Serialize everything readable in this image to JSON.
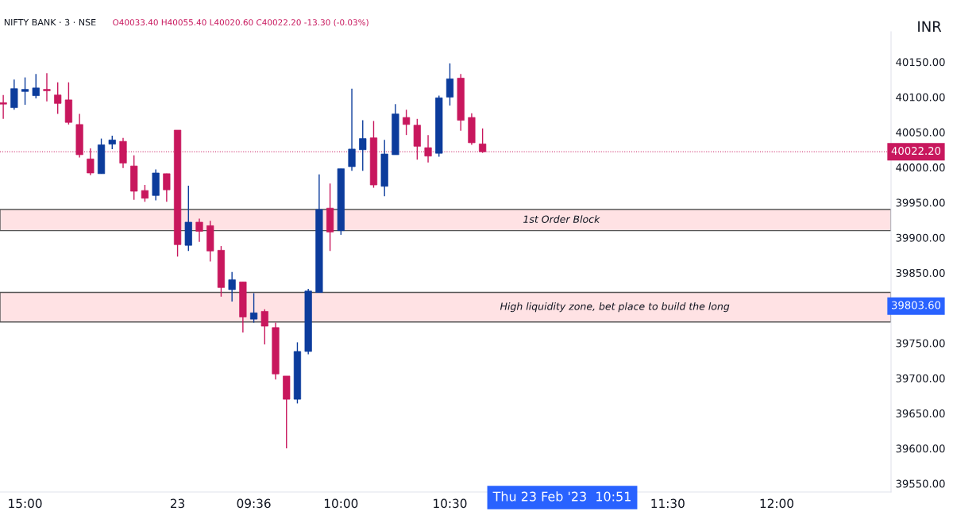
{
  "chart_data": {
    "type": "candlestick",
    "title": "NIFTY BANK · 3 · NSE",
    "subtitle": "O40033.40 H40055.40 L40020.60 C40022.20 -13.30 (-0.03%)",
    "categories": [
      null,
      null,
      "15:00",
      null,
      null,
      null,
      null,
      null,
      null,
      null,
      null,
      null,
      null,
      null,
      null,
      null,
      "23",
      null,
      null,
      null,
      null,
      null,
      null,
      "09:36",
      null,
      null,
      null,
      null,
      null,
      null,
      null,
      "10:00",
      null,
      null,
      null,
      null,
      null,
      null,
      null,
      null,
      null,
      "10:30",
      null,
      null,
      null,
      null,
      null,
      null,
      null,
      null,
      null,
      null,
      null,
      null,
      null,
      null,
      null,
      null,
      null,
      null,
      null,
      "11:30",
      null,
      null,
      null,
      null,
      null,
      null,
      null,
      null,
      null,
      "12:00",
      null,
      null,
      null,
      null,
      null,
      null,
      null,
      null,
      null,
      null
    ],
    "ohlc": [
      [
        40092,
        40103,
        40069,
        40090
      ],
      [
        40085,
        40125,
        40082,
        40112
      ],
      [
        40108,
        40128,
        40089,
        40111
      ],
      [
        40102,
        40133,
        40098,
        40113
      ],
      [
        40111,
        40134,
        40094,
        40109
      ],
      [
        40103,
        40121,
        40076,
        40091
      ],
      [
        40096,
        40121,
        40061,
        40064
      ],
      [
        40061,
        40076,
        40014,
        40018
      ],
      [
        40012,
        40027,
        39989,
        39992
      ],
      [
        39991,
        40041,
        39991,
        40032
      ],
      [
        40033,
        40045,
        40026,
        40039
      ],
      [
        40037,
        40042,
        39999,
        40006
      ],
      [
        40002,
        40017,
        39954,
        39966
      ],
      [
        39967,
        39975,
        39951,
        39956
      ],
      [
        39960,
        39997,
        39953,
        39992
      ],
      [
        39991,
        39991,
        39951,
        39968
      ],
      [
        40053,
        40053,
        39873,
        39890
      ],
      [
        39889,
        39974,
        39881,
        39922
      ],
      [
        39922,
        39927,
        39894,
        39909
      ],
      [
        39917,
        39924,
        39866,
        39881
      ],
      [
        39882,
        39888,
        39816,
        39829
      ],
      [
        39826,
        39851,
        39809,
        39840
      ],
      [
        39837,
        39837,
        39765,
        39787
      ],
      [
        39784,
        39821,
        39779,
        39793
      ],
      [
        39795,
        39798,
        39748,
        39774
      ],
      [
        39772,
        39779,
        39698,
        39706
      ],
      [
        39703,
        39703,
        39600,
        39670
      ],
      [
        39670,
        39751,
        39664,
        39738
      ],
      [
        39738,
        39827,
        39734,
        39824
      ],
      [
        39822,
        39990,
        39822,
        39940
      ],
      [
        39942,
        39977,
        39881,
        39908
      ],
      [
        39910,
        39998,
        39904,
        39998
      ],
      [
        40001,
        40112,
        39995,
        40026
      ],
      [
        40025,
        40067,
        39995,
        40041
      ],
      [
        40042,
        40066,
        39971,
        39975
      ],
      [
        39973,
        40039,
        39959,
        40019
      ],
      [
        40018,
        40090,
        40018,
        40076
      ],
      [
        40071,
        40082,
        40046,
        40061
      ],
      [
        40060,
        40069,
        40011,
        40030
      ],
      [
        40028,
        40046,
        40007,
        40016
      ],
      [
        40020,
        40102,
        40015,
        40099
      ],
      [
        40100,
        40148,
        40088,
        40126
      ],
      [
        40127,
        40133,
        40052,
        40067
      ],
      [
        40071,
        40077,
        40032,
        40035
      ],
      [
        40033.4,
        40055.4,
        40020.6,
        40022.2
      ],
      null,
      null,
      null,
      null,
      null,
      null,
      null,
      null,
      null,
      null,
      null,
      null,
      null,
      null,
      null,
      null,
      null,
      null,
      null,
      null,
      null,
      null,
      null,
      null,
      null,
      null,
      null,
      null,
      null,
      null,
      null,
      null,
      null,
      null,
      null,
      null,
      null
    ],
    "colors": [
      "#c8175d",
      "#0c3c9c",
      "#0c3c9c",
      "#0c3c9c",
      "#c8175d",
      "#c8175d",
      "#c8175d",
      "#c8175d",
      "#c8175d",
      "#0c3c9c",
      "#0c3c9c",
      "#c8175d",
      "#c8175d",
      "#c8175d",
      "#0c3c9c",
      "#c8175d",
      "#c8175d",
      "#0c3c9c",
      "#c8175d",
      "#c8175d",
      "#c8175d",
      "#0c3c9c",
      "#c8175d",
      "#0c3c9c",
      "#c8175d",
      "#c8175d",
      "#c8175d",
      "#0c3c9c",
      "#0c3c9c",
      "#0c3c9c",
      "#c8175d",
      "#0c3c9c",
      "#0c3c9c",
      "#0c3c9c",
      "#c8175d",
      "#0c3c9c",
      "#0c3c9c",
      "#c8175d",
      "#c8175d",
      "#c8175d",
      "#0c3c9c",
      "#0c3c9c",
      "#c8175d",
      "#c8175d",
      "#c8175d",
      null,
      null,
      null,
      null,
      null,
      null,
      null,
      null,
      null,
      null,
      null,
      null,
      null,
      null,
      null,
      null,
      null,
      null,
      null,
      null,
      null,
      null,
      null,
      null,
      null,
      null,
      null,
      null,
      null,
      null,
      null,
      null,
      null,
      null,
      null,
      null,
      null
    ],
    "ylim": [
      39538,
      40193
    ],
    "yticks": [
      {
        "value": 39550,
        "label": "39550.00"
      },
      {
        "value": 39600,
        "label": "39600.00"
      },
      {
        "value": 39650,
        "label": "39650.00"
      },
      {
        "value": 39700,
        "label": "39700.00"
      },
      {
        "value": 39750,
        "label": "39750.00"
      },
      {
        "value": 39850,
        "label": "39850.00"
      },
      {
        "value": 39900,
        "label": "39900.00"
      },
      {
        "value": 39950,
        "label": "39950.00"
      },
      {
        "value": 40000,
        "label": "40000.00"
      },
      {
        "value": 40050,
        "label": "40050.00"
      },
      {
        "value": 40100,
        "label": "40100.00"
      },
      {
        "value": 40150,
        "label": "40150.00"
      }
    ],
    "bands": [
      {
        "axis": "y",
        "from": 39910,
        "to": 39940,
        "label": "1st Order Block",
        "color": "#ffe2e4"
      },
      {
        "axis": "y",
        "from": 39780,
        "to": 39822,
        "label": "High liquidity zone, bet place to build the long",
        "color": "#ffe2e4"
      }
    ],
    "ref_lines": [
      {
        "axis": "y",
        "value": 40022.2,
        "label": "40022.20",
        "color": "#c8175d",
        "line_style": "dotted"
      }
    ],
    "annotations": [
      "INR",
      "39803.60",
      "Thu 23 Feb '23  10:51"
    ],
    "grid": false,
    "legend": false
  }
}
